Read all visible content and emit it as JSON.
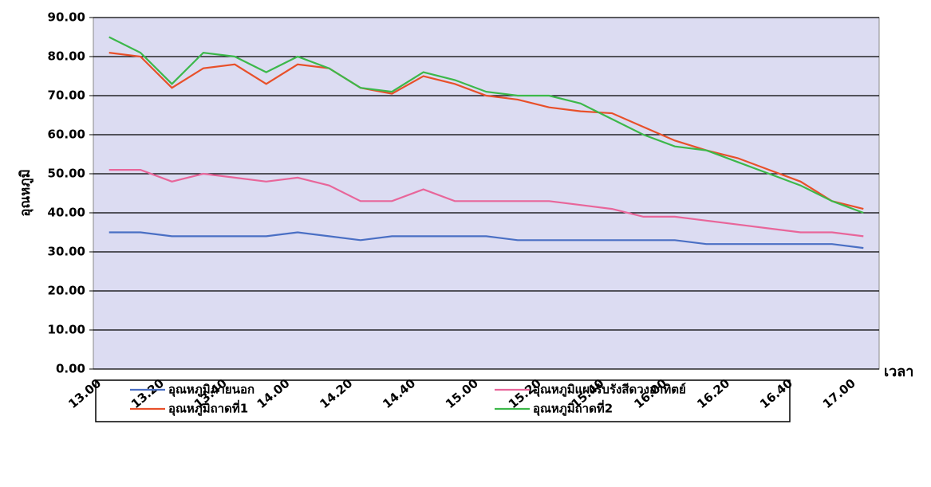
{
  "chart_data": {
    "type": "line",
    "y_label": "อุณหภูมิ",
    "x_label": "เวลา",
    "categories": [
      "13.00",
      null,
      "13.20",
      null,
      "13.40",
      null,
      "14.00",
      null,
      "14.20",
      null,
      "14.40",
      null,
      "15.00",
      null,
      "15.20",
      null,
      "15.40",
      null,
      "16.00",
      null,
      "16.20",
      null,
      "16.40",
      null,
      "17.00"
    ],
    "series": [
      {
        "name": "อุณหภูมิภายนอก",
        "color": "#4a6fc4",
        "values": [
          35,
          35,
          34,
          34,
          34,
          34,
          35,
          34,
          33,
          34,
          34,
          34,
          34,
          33,
          33,
          33,
          33,
          33,
          33,
          32,
          32,
          32,
          32,
          32,
          31
        ]
      },
      {
        "name": "อุณหภูมิแผงรับรังสีดวงอาทิตย์",
        "color": "#e8669a",
        "values": [
          51,
          51,
          48,
          50,
          49,
          48,
          49,
          47,
          43,
          43,
          46,
          43,
          43,
          43,
          43,
          42,
          41,
          39,
          39,
          38,
          37,
          36,
          35,
          35,
          34
        ]
      },
      {
        "name": "อุณหภูมิถาดที่1",
        "color": "#e8502a",
        "values": [
          81,
          80,
          72,
          77,
          78,
          73,
          78,
          77,
          72,
          70.5,
          75,
          73,
          70,
          69,
          67,
          66,
          65.5,
          62,
          58.5,
          56,
          54,
          51,
          48,
          43,
          41
        ]
      },
      {
        "name": "อุณหภูมิถาดที่2",
        "color": "#3cb84a",
        "values": [
          85,
          81,
          73,
          81,
          80,
          76,
          80,
          77,
          72,
          71,
          76,
          74,
          71,
          70,
          70,
          68,
          64,
          60,
          57,
          56,
          53,
          50,
          47,
          43,
          40
        ]
      }
    ],
    "ylim": [
      0,
      90
    ],
    "yticks": [
      {
        "value": 0,
        "label": "0.00"
      },
      {
        "value": 10,
        "label": "10.00"
      },
      {
        "value": 20,
        "label": "20.00"
      },
      {
        "value": 30,
        "label": "30.00"
      },
      {
        "value": 40,
        "label": "40.00"
      },
      {
        "value": 50,
        "label": "50.00"
      },
      {
        "value": 60,
        "label": "60.00"
      },
      {
        "value": 70,
        "label": "70.00"
      },
      {
        "value": 80,
        "label": "80.00"
      },
      {
        "value": 90,
        "label": "90.00"
      }
    ],
    "grid": true
  }
}
